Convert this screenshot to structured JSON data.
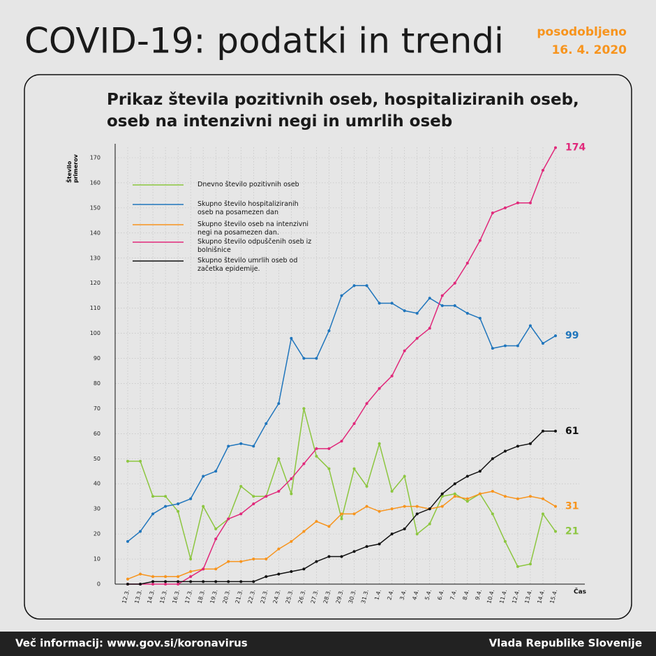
{
  "header": {
    "title": "COVID-19: podatki in trendi",
    "updated_label": "posodobljeno",
    "updated_date": "16. 4. 2020"
  },
  "footer": {
    "left": "Več informacij: www.gov.si/koronavirus",
    "right": "Vlada Republike Slovenije"
  },
  "chart_data": {
    "type": "line",
    "title": "Prikaz števila pozitivnih oseb, hospitaliziranih oseb, oseb na intenzivni negi in umrlih oseb",
    "x_label": "Čas",
    "y_label": "Število primerov",
    "categories": [
      "12.3.",
      "13.3.",
      "14.3.",
      "15.3.",
      "16.3.",
      "17.3.",
      "18.3.",
      "19.3.",
      "20.3.",
      "21.3.",
      "22.3.",
      "23.3.",
      "24.3.",
      "25.3.",
      "26.3.",
      "27.3.",
      "28.3.",
      "29.3.",
      "30.3.",
      "31.3.",
      "1.4.",
      "2.4.",
      "3.4.",
      "4.4.",
      "5.4.",
      "6.4.",
      "7.4.",
      "8.4.",
      "9.4.",
      "10.4.",
      "11.4.",
      "12.4.",
      "13.4.",
      "14.4.",
      "15.4."
    ],
    "series": [
      {
        "name": "Dnevno število pozitivnih oseb",
        "color": "#8cc63f",
        "values": [
          49,
          49,
          35,
          35,
          29,
          10,
          31,
          22,
          26,
          39,
          35,
          35,
          50,
          36,
          70,
          51,
          46,
          26,
          46,
          39,
          56,
          37,
          43,
          20,
          24,
          35,
          36,
          33,
          36,
          28,
          17,
          7,
          8,
          28,
          21
        ]
      },
      {
        "name": "Skupno število hospitaliziranih oseb na posamezen dan",
        "color": "#1f75bc",
        "values": [
          17,
          21,
          28,
          31,
          32,
          34,
          43,
          45,
          55,
          56,
          55,
          64,
          72,
          98,
          90,
          90,
          101,
          115,
          119,
          119,
          112,
          112,
          109,
          108,
          114,
          111,
          111,
          108,
          106,
          94,
          95,
          95,
          103,
          96,
          99
        ]
      },
      {
        "name": "Skupno število oseb na intenzivni negi na posamezen dan.",
        "color": "#f7941d",
        "values": [
          2,
          4,
          3,
          3,
          3,
          5,
          6,
          6,
          9,
          9,
          10,
          10,
          14,
          17,
          21,
          25,
          23,
          28,
          28,
          31,
          29,
          30,
          31,
          31,
          30,
          31,
          35,
          34,
          36,
          37,
          35,
          34,
          35,
          34,
          31
        ]
      },
      {
        "name": "Skupno število odpuščenih oseb iz bolnišnice",
        "color": "#e0287a",
        "values": [
          0,
          0,
          0,
          0,
          0,
          3,
          6,
          18,
          26,
          28,
          32,
          35,
          37,
          42,
          48,
          54,
          54,
          57,
          64,
          72,
          78,
          83,
          93,
          98,
          102,
          115,
          120,
          128,
          137,
          148,
          150,
          152,
          152,
          165,
          174
        ]
      },
      {
        "name": "Skupno število umrlih oseb od začetka epidemije.",
        "color": "#111111",
        "values": [
          0,
          0,
          1,
          1,
          1,
          1,
          1,
          1,
          1,
          1,
          1,
          3,
          4,
          5,
          6,
          9,
          11,
          11,
          13,
          15,
          16,
          20,
          22,
          28,
          30,
          36,
          40,
          43,
          45,
          50,
          53,
          55,
          56,
          61,
          61
        ]
      }
    ],
    "ylim": [
      0,
      170
    ],
    "yticks": [
      0,
      10,
      20,
      30,
      40,
      50,
      60,
      70,
      80,
      90,
      100,
      110,
      120,
      130,
      140,
      150,
      160,
      170
    ],
    "grid": true
  }
}
